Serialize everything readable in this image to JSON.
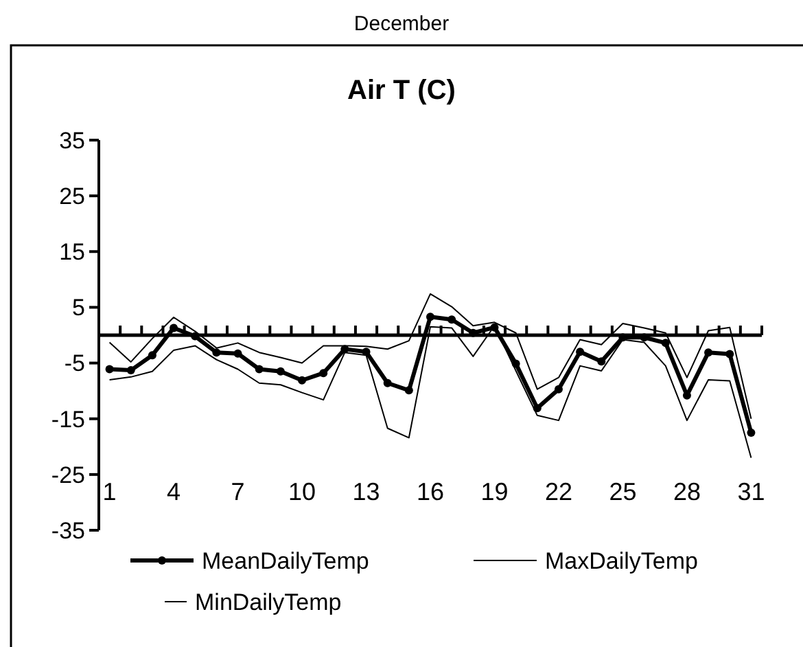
{
  "chart_data": {
    "type": "line",
    "title": "December",
    "subtitle": "Air T (C)",
    "categories": [
      "1",
      null,
      null,
      "4",
      null,
      null,
      "7",
      null,
      null,
      "10",
      null,
      null,
      "13",
      null,
      null,
      "16",
      null,
      null,
      "19",
      null,
      null,
      "22",
      null,
      null,
      "25",
      null,
      null,
      "28",
      null,
      null,
      "31"
    ],
    "series": [
      {
        "name": "MeanDailyTemp",
        "color": "#000000",
        "marker": "circle",
        "values": [
          -6.1,
          -6.3,
          -3.6,
          1.3,
          -0.2,
          -3.1,
          -3.3,
          -6.1,
          -6.5,
          -8.1,
          -6.8,
          -2.5,
          -3,
          -8.6,
          -9.9,
          3.3,
          2.8,
          0.4,
          1.4,
          -5.1,
          -13.1,
          -9.7,
          -3,
          -4.7,
          -0.4,
          -0.4,
          -1.4,
          -10.8,
          -3.1,
          -3.4,
          -17.5
        ]
      },
      {
        "name": "MaxDailyTemp",
        "color": "#000000",
        "marker": "none",
        "values": [
          -1.3,
          -4.8,
          -0.6,
          3.2,
          0.7,
          -2.3,
          -1.4,
          -3.1,
          -4,
          -5,
          -1.9,
          -1.9,
          -2,
          -2.5,
          -1,
          7.4,
          5.1,
          1.7,
          2.3,
          0.4,
          -9.7,
          -7.6,
          -0.8,
          -1.7,
          2.1,
          1.3,
          0.4,
          -7.6,
          0.8,
          1.4,
          -15
        ]
      },
      {
        "name": "MinDailyTemp",
        "color": "#000000",
        "marker": "none",
        "values": [
          -8,
          -7.5,
          -6.5,
          -2.7,
          -1.9,
          -4.4,
          -6.1,
          -8.6,
          -8.9,
          -10.3,
          -11.6,
          -3.1,
          -3.6,
          -16.7,
          -18.4,
          1.5,
          1.3,
          -3.8,
          1.7,
          -6.4,
          -14.4,
          -15.3,
          -5.5,
          -6.4,
          -0.8,
          -1.3,
          -5.5,
          -15.3,
          -8,
          -8.2,
          -22
        ]
      }
    ],
    "ylim": [
      -35,
      35
    ],
    "yticks": [
      35,
      25,
      15,
      5,
      -5,
      -15,
      -25,
      -35
    ],
    "grid": false,
    "legend": "bottom"
  }
}
